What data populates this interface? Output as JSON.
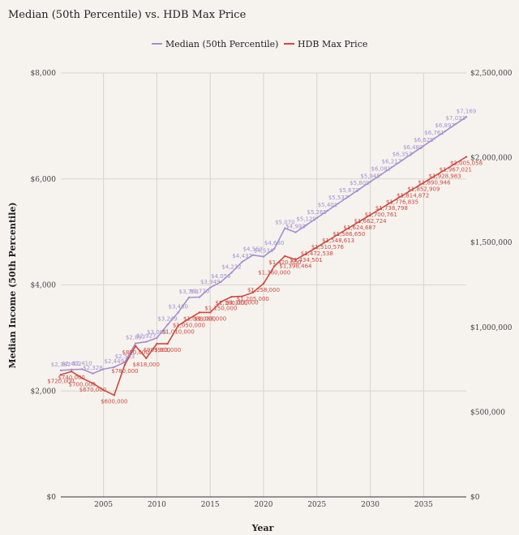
{
  "chart_data": {
    "type": "line",
    "title": "Median (50th Percentile) vs. HDB Max Price",
    "xlabel": "Year",
    "ylabel": "Median Income (50th Percentile)",
    "y2label": "",
    "xlim": [
      2001,
      2039
    ],
    "ylim": [
      0,
      8000
    ],
    "y2lim": [
      0,
      2500000
    ],
    "x_ticks": [
      "2005",
      "2010",
      "2015",
      "2020",
      "2025",
      "2030",
      "2035"
    ],
    "y_ticks": [
      "$0",
      "$2,000",
      "$4,000",
      "$6,000",
      "$8,000"
    ],
    "y2_ticks": [
      "$0",
      "$500,000",
      "$1,000,000",
      "$1,500,000",
      "$2,000,000",
      "$2,500,000"
    ],
    "grid": true,
    "legend": "top-center",
    "colors": {
      "median": "#a48fd0",
      "hdb": "#d0473f",
      "grid": "#d8d3cb",
      "background": "#f6f3ee"
    },
    "series": [
      {
        "name": "Median (50th Percentile)",
        "axis": "left",
        "x": [
          2001,
          2002,
          2003,
          2004,
          2005,
          2006,
          2007,
          2008,
          2009,
          2010,
          2011,
          2012,
          2013,
          2014,
          2015,
          2016,
          2017,
          2018,
          2019,
          2020,
          2021,
          2022,
          2023,
          2024,
          2025,
          2026,
          2027,
          2028,
          2029,
          2030,
          2031,
          2032,
          2033,
          2034,
          2035,
          2036,
          2037,
          2038,
          2039
        ],
        "values": [
          2387,
          2402,
          2410,
          2328,
          2410,
          2449,
          2543,
          2897,
          2927,
          3000,
          3249,
          3480,
          3763,
          3770,
          3949,
          4056,
          4232,
          4437,
          4563,
          4534,
          4680,
          5070,
          4993,
          5129,
          5265,
          5401,
          5537,
          5673,
          5809,
          5945,
          6081,
          6217,
          6353,
          6489,
          6625,
          6761,
          6897,
          7033,
          7169
        ],
        "labels": [
          "$2,387",
          "$2,402",
          "$2,410",
          "$2,328",
          "",
          "$2,449",
          "$2,543",
          "$2,897",
          "$2,927",
          "$3,000",
          "$3,249",
          "$3,480",
          "$3,763",
          "$3,770",
          "$3,949",
          "$4,056",
          "$4,232",
          "$4,437",
          "$4,563",
          "$4,534",
          "$4,680",
          "$5,070",
          "$4,993",
          "$5,129",
          "$5,265",
          "$5,401",
          "$5,537",
          "$5,673",
          "$5,809",
          "$5,945",
          "$6,081",
          "$6,217",
          "$6,353",
          "$6,489",
          "$6,625",
          "$6,761",
          "$6,897",
          "$7,033",
          "$7,169"
        ]
      },
      {
        "name": "HDB Max Price",
        "axis": "right",
        "x": [
          2001,
          2002,
          2003,
          2004,
          2005,
          2006,
          2007,
          2008,
          2009,
          2010,
          2011,
          2012,
          2013,
          2014,
          2015,
          2016,
          2017,
          2018,
          2019,
          2020,
          2021,
          2022,
          2023,
          2024,
          2025,
          2026,
          2027,
          2028,
          2029,
          2030,
          2031,
          2032,
          2033,
          2034,
          2035,
          2036,
          2037,
          2038,
          2039
        ],
        "values": [
          720000,
          740000,
          700000,
          670000,
          630000,
          600000,
          780000,
          890000,
          818000,
          903000,
          903000,
          1010000,
          1050000,
          1088000,
          1088000,
          1150000,
          1180000,
          1183000,
          1205000,
          1258000,
          1360000,
          1420000,
          1398464,
          1434501,
          1472538,
          1510576,
          1548613,
          1586650,
          1624687,
          1662724,
          1700761,
          1738798,
          1776835,
          1814872,
          1852909,
          1890946,
          1928983,
          1967021,
          2005058
        ],
        "labels": [
          "$720,000",
          "$740,000",
          "$700,000",
          "$670,000",
          "",
          "$600,000",
          "$780,000",
          "$890,000",
          "$818,000",
          "$903,000",
          "$903,000",
          "$1,010,000",
          "$1,050,000",
          "$1,088,000",
          "$1,088,000",
          "$1,150,000",
          "$1,180,000",
          "$1,183,000",
          "$1,205,000",
          "$1,258,000",
          "$1,360,000",
          "$1,420,000",
          "$1,398,464",
          "$1,434,501",
          "$1,472,538",
          "$1,510,576",
          "$1,548,613",
          "$1,586,650",
          "$1,624,687",
          "$1,662,724",
          "$1,700,761",
          "$1,738,798",
          "$1,776,835",
          "$1,814,872",
          "$1,852,909",
          "$1,890,946",
          "$1,928,983",
          "$1,967,021",
          "$2,005,058"
        ]
      }
    ]
  }
}
